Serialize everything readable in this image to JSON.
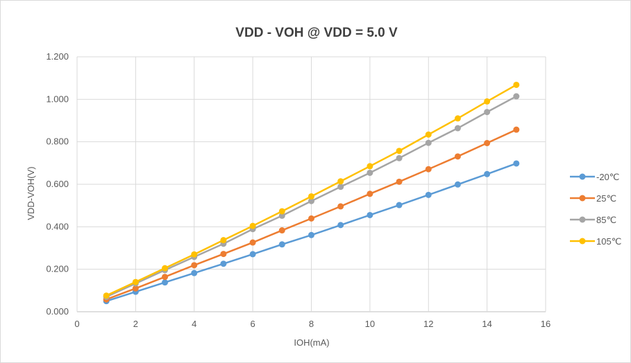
{
  "chart_data": {
    "type": "line",
    "title": "VDD - VOH @ VDD = 5.0 V",
    "xlabel": "IOH(mA)",
    "ylabel": "VDD-VOH(V)",
    "xlim": [
      0,
      16
    ],
    "ylim": [
      0,
      1.2
    ],
    "x_ticks": [
      "0",
      "2",
      "4",
      "6",
      "8",
      "10",
      "12",
      "14",
      "16"
    ],
    "y_ticks": [
      "0.000",
      "0.200",
      "0.400",
      "0.600",
      "0.800",
      "1.000",
      "1.200"
    ],
    "grid": true,
    "legend_position": "right",
    "x": [
      1,
      2,
      3,
      4,
      5,
      6,
      7,
      8,
      9,
      10,
      11,
      12,
      13,
      14,
      15
    ],
    "series": [
      {
        "name": "-20℃",
        "color": "#5b9bd5",
        "values": [
          0.05,
          0.094,
          0.138,
          0.182,
          0.226,
          0.271,
          0.317,
          0.361,
          0.408,
          0.455,
          0.502,
          0.55,
          0.599,
          0.648,
          0.698
        ]
      },
      {
        "name": "25℃",
        "color": "#ed7d31",
        "values": [
          0.058,
          0.11,
          0.164,
          0.219,
          0.272,
          0.326,
          0.383,
          0.439,
          0.496,
          0.555,
          0.612,
          0.671,
          0.731,
          0.794,
          0.857
        ]
      },
      {
        "name": "85℃",
        "color": "#a5a5a5",
        "values": [
          0.07,
          0.133,
          0.196,
          0.258,
          0.32,
          0.389,
          0.452,
          0.521,
          0.588,
          0.654,
          0.723,
          0.795,
          0.864,
          0.94,
          1.014
        ]
      },
      {
        "name": "105℃",
        "color": "#ffc000",
        "values": [
          0.076,
          0.14,
          0.205,
          0.27,
          0.337,
          0.404,
          0.473,
          0.543,
          0.614,
          0.685,
          0.757,
          0.834,
          0.91,
          0.99,
          1.068
        ]
      }
    ]
  }
}
